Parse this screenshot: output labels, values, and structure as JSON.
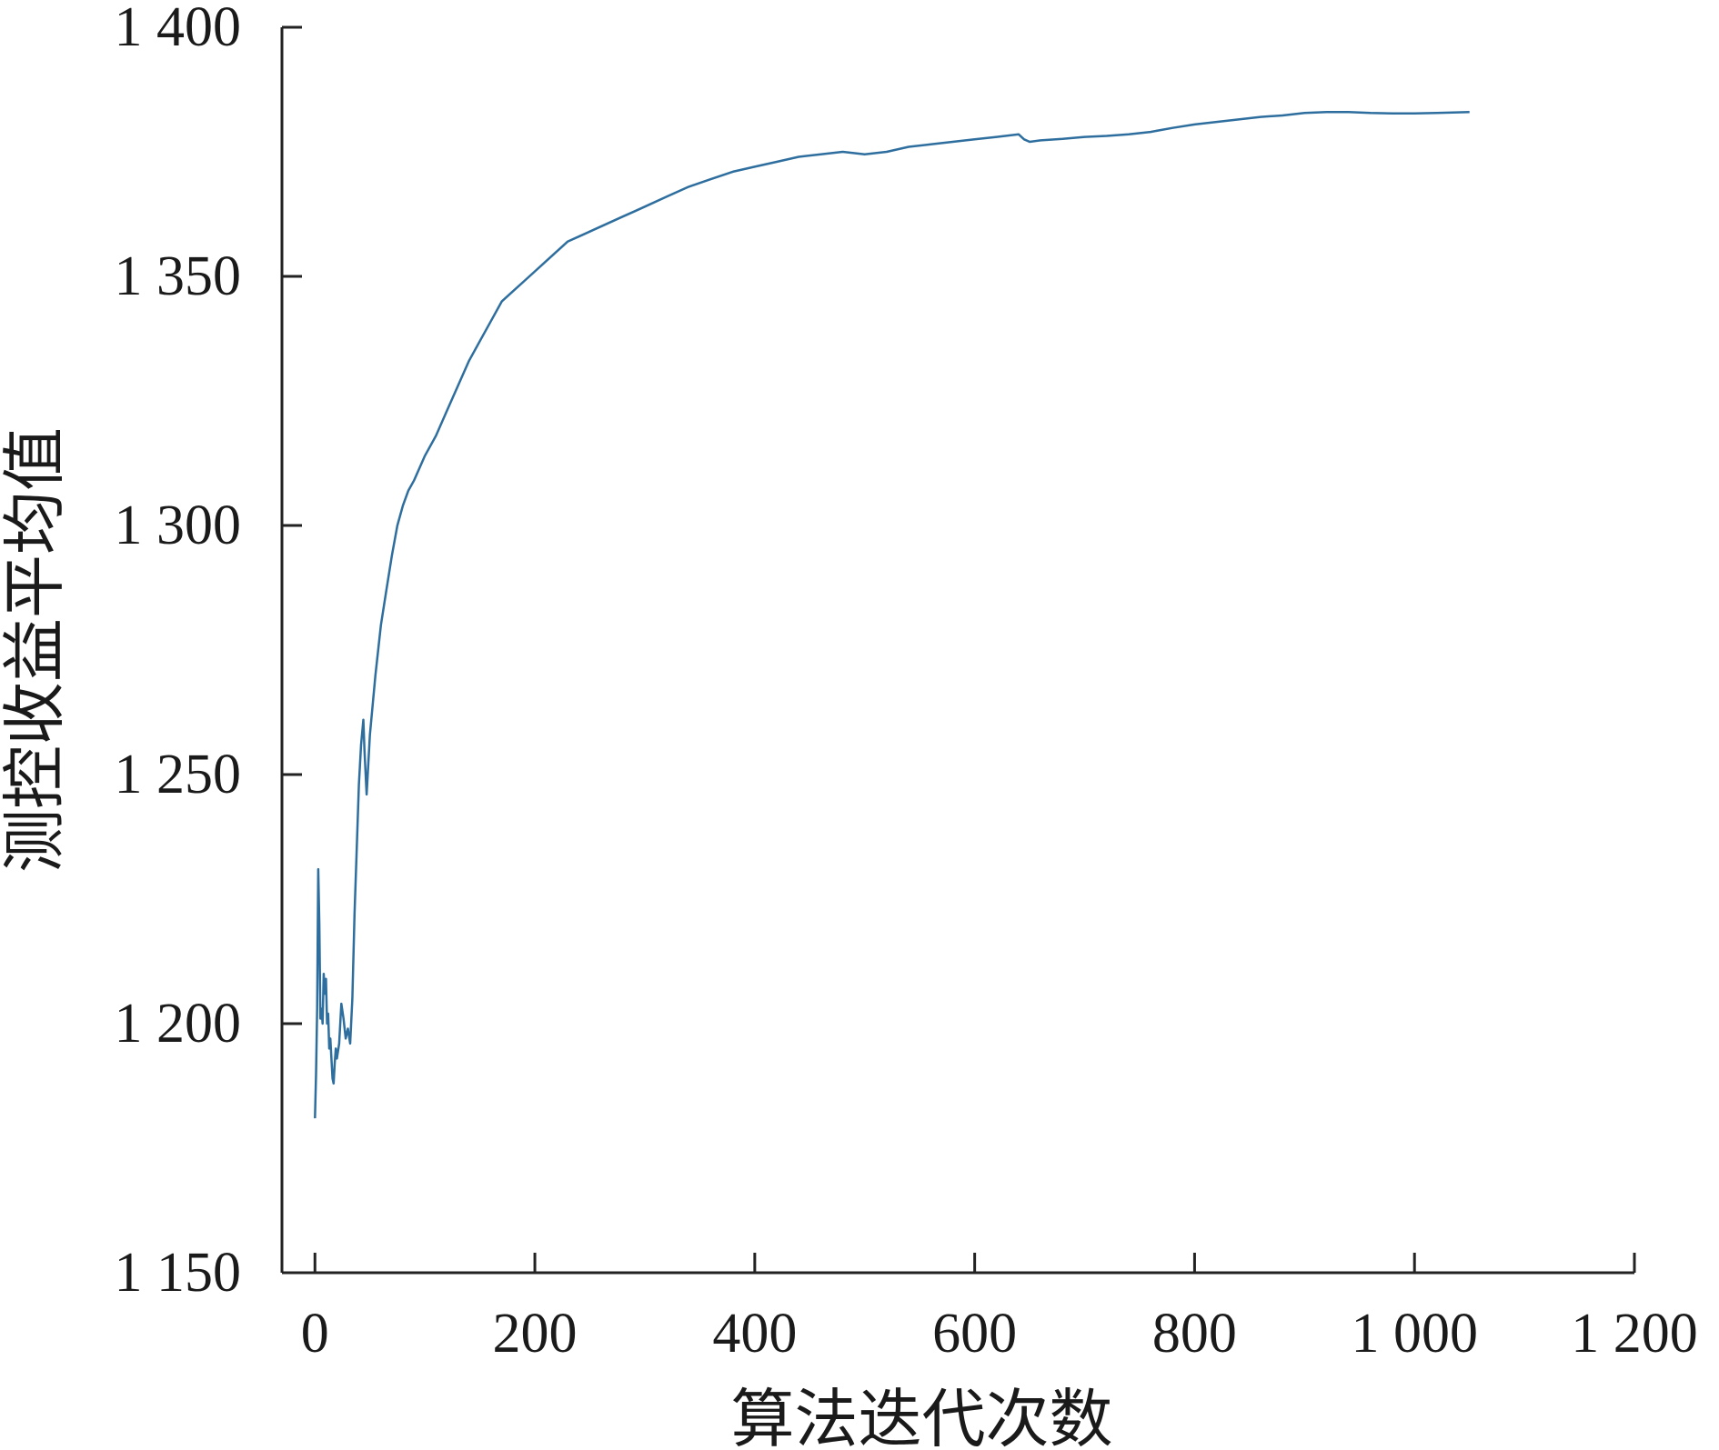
{
  "chart_data": {
    "type": "line",
    "title": "",
    "xlabel": "算法迭代次数",
    "ylabel": "测控收益平均值",
    "xlim": [
      -30,
      1200
    ],
    "ylim": [
      1150,
      1400
    ],
    "x_ticks": [
      0,
      200,
      400,
      600,
      800,
      1000,
      1200
    ],
    "x_tick_labels": [
      "0",
      "200",
      "400",
      "600",
      "800",
      "1 000",
      "1 200"
    ],
    "y_ticks": [
      1150,
      1200,
      1250,
      1300,
      1350,
      1400
    ],
    "y_tick_labels": [
      "1 150",
      "1 200",
      "1 250",
      "1 300",
      "1 350",
      "1 400"
    ],
    "grid": false,
    "legend": false,
    "colors": {
      "line": "#2e6e9e",
      "axis": "#222222"
    },
    "series": [
      {
        "x": [
          0,
          1,
          2,
          3,
          4,
          5,
          6,
          7,
          8,
          9,
          10,
          11,
          12,
          13,
          14,
          15,
          16,
          17,
          18,
          19,
          20,
          22,
          24,
          26,
          28,
          30,
          32,
          34,
          36,
          38,
          40,
          42,
          44,
          45,
          47,
          50,
          55,
          60,
          65,
          70,
          75,
          80,
          85,
          90,
          100,
          110,
          120,
          130,
          140,
          150,
          160,
          170,
          180,
          190,
          200,
          210,
          220,
          230,
          240,
          250,
          260,
          270,
          280,
          290,
          300,
          320,
          340,
          360,
          380,
          400,
          420,
          440,
          460,
          480,
          500,
          520,
          540,
          560,
          580,
          600,
          620,
          640,
          645,
          650,
          660,
          680,
          700,
          720,
          740,
          760,
          780,
          800,
          820,
          840,
          860,
          880,
          900,
          920,
          940,
          960,
          980,
          1000,
          1020,
          1050
        ],
        "y": [
          1181,
          1190,
          1203,
          1231,
          1220,
          1201,
          1203,
          1200,
          1210,
          1206,
          1209,
          1200,
          1202,
          1195,
          1197,
          1193,
          1189,
          1188,
          1192,
          1195,
          1193,
          1196,
          1204,
          1201,
          1197,
          1199,
          1196,
          1205,
          1222,
          1235,
          1248,
          1256,
          1261,
          1255,
          1246,
          1258,
          1270,
          1280,
          1287,
          1294,
          1300,
          1304,
          1307,
          1309,
          1314,
          1318,
          1323,
          1328,
          1333,
          1337,
          1341,
          1345,
          1347,
          1349,
          1351,
          1353,
          1355,
          1357,
          1358,
          1359,
          1360,
          1361,
          1362,
          1363,
          1364,
          1366,
          1368,
          1369.5,
          1371,
          1372,
          1373,
          1374,
          1374.5,
          1375,
          1374.5,
          1375,
          1376,
          1376.5,
          1377,
          1377.5,
          1378,
          1378.5,
          1377.5,
          1377,
          1377.3,
          1377.6,
          1378,
          1378.2,
          1378.5,
          1379,
          1379.8,
          1380.5,
          1381,
          1381.5,
          1382,
          1382.3,
          1382.8,
          1383,
          1383,
          1382.8,
          1382.7,
          1382.7,
          1382.8,
          1383
        ]
      }
    ]
  }
}
